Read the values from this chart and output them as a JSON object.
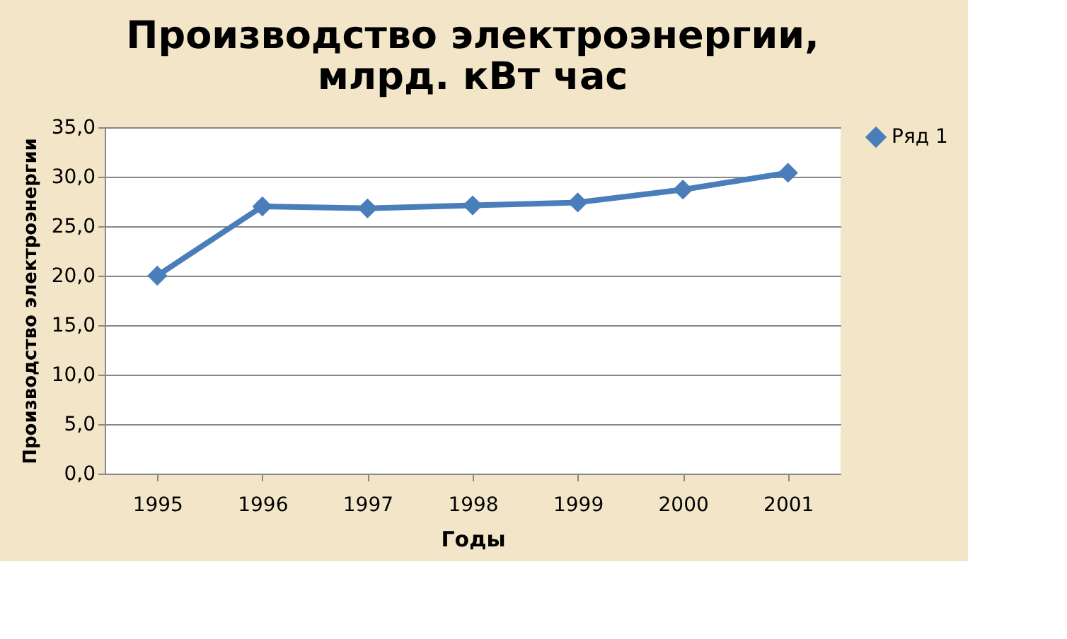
{
  "chart_data": {
    "type": "line",
    "title": "Производство электроэнергии,\nмлрд. кВт час",
    "xlabel": "Годы",
    "ylabel": "Производство электроэнергии",
    "categories": [
      "1995",
      "1996",
      "1997",
      "1998",
      "1999",
      "2000",
      "2001"
    ],
    "series": [
      {
        "name": "Ряд 1",
        "color": "#4a7ebb",
        "values": [
          20.0,
          27.0,
          26.8,
          27.1,
          27.4,
          28.7,
          30.4
        ]
      }
    ],
    "ylim": [
      0,
      35
    ],
    "yticks": [
      {
        "value": 0,
        "label": "0,0"
      },
      {
        "value": 5,
        "label": "5,0"
      },
      {
        "value": 10,
        "label": "10,0"
      },
      {
        "value": 15,
        "label": "15,0"
      },
      {
        "value": 20,
        "label": "20,0"
      },
      {
        "value": 25,
        "label": "25,0"
      },
      {
        "value": 30,
        "label": "30,0"
      },
      {
        "value": 35,
        "label": "35,0"
      }
    ],
    "grid": "y",
    "legend": "right",
    "marker": "diamond",
    "line_style": "solid"
  }
}
